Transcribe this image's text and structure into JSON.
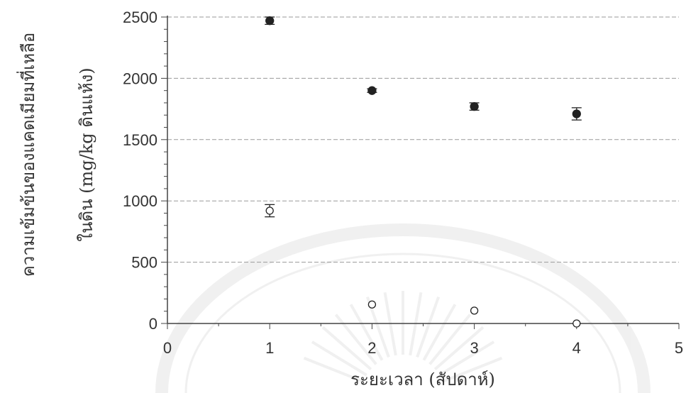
{
  "chart_data": {
    "type": "scatter",
    "xlabel": "ระยะเวลา (สัปดาห์)",
    "ylabel_line1": "ความเข้มข้นของแคดเมียมที่เหลือ",
    "ylabel_line2": "ในดิน (mg/kg ดินแห้ง)",
    "xlim": [
      0,
      5
    ],
    "ylim": [
      0,
      2500
    ],
    "x_ticks": [
      0,
      1,
      2,
      3,
      4,
      5
    ],
    "y_ticks": [
      0,
      500,
      1000,
      1500,
      2000,
      2500
    ],
    "grid": "horizontal dashed",
    "series": [
      {
        "marker": "filled-circle",
        "points": [
          {
            "x": 1,
            "y": 2470,
            "err": 30
          },
          {
            "x": 2,
            "y": 1900,
            "err": 15
          },
          {
            "x": 3,
            "y": 1770,
            "err": 30
          },
          {
            "x": 4,
            "y": 1710,
            "err": 50
          }
        ]
      },
      {
        "marker": "open-circle",
        "points": [
          {
            "x": 1,
            "y": 920,
            "err": 50
          },
          {
            "x": 2,
            "y": 155,
            "err": 0
          },
          {
            "x": 3,
            "y": 105,
            "err": 0
          },
          {
            "x": 4,
            "y": 0,
            "err": 0
          }
        ]
      }
    ]
  },
  "colors": {
    "axis": "#444444",
    "grid": "#9a9a9a",
    "marker": "#222222",
    "watermark": "#9a9a9a"
  }
}
